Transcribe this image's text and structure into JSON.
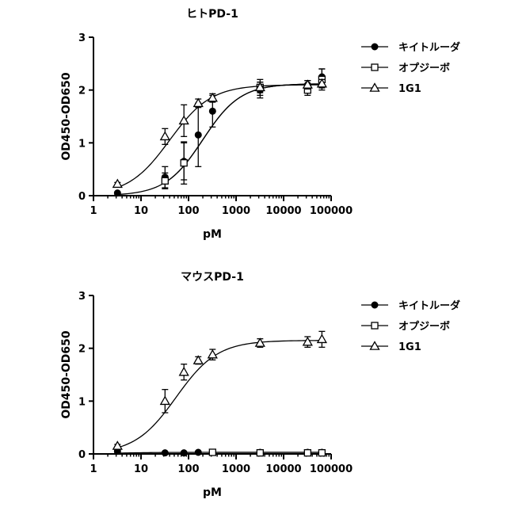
{
  "chart_data": [
    {
      "type": "scatter",
      "title": "ヒトPD-1",
      "xlabel": "pM",
      "ylabel": "OD450-OD650",
      "xscale": "log",
      "xlim": [
        1,
        100000
      ],
      "ylim": [
        0,
        3
      ],
      "xticks": [
        1,
        10,
        100,
        1000,
        10000,
        100000
      ],
      "xtick_labels": [
        "1",
        "10",
        "100",
        "1000",
        "10000",
        "100000"
      ],
      "yticks": [
        0,
        1,
        2,
        3
      ],
      "ytick_labels": [
        "0",
        "1",
        "2",
        "3"
      ],
      "legend_position": "right",
      "series": [
        {
          "name": "キイトルーダ",
          "marker": "filled-circle",
          "fit": "sigmoid",
          "fit_params": {
            "bottom": 0.0,
            "top": 2.12,
            "ec50": 200,
            "hill": 1.1
          },
          "points": [
            {
              "x": 3.2,
              "y": 0.05,
              "err": 0.02
            },
            {
              "x": 32,
              "y": 0.35,
              "err": 0.2
            },
            {
              "x": 80,
              "y": 0.65,
              "err": 0.35
            },
            {
              "x": 160,
              "y": 1.15,
              "err": 0.6
            },
            {
              "x": 320,
              "y": 1.6,
              "err": 0.3
            },
            {
              "x": 3200,
              "y": 2.0,
              "err": 0.15
            },
            {
              "x": 32000,
              "y": 2.1,
              "err": 0.08
            },
            {
              "x": 64000,
              "y": 2.25,
              "err": 0.15
            }
          ]
        },
        {
          "name": "オプジーボ",
          "marker": "open-square",
          "fit": "sigmoid",
          "fit_params": {
            "bottom": 0.0,
            "top": 2.12,
            "ec50": 200,
            "hill": 1.1
          },
          "points": [
            {
              "x": 32,
              "y": 0.28,
              "err": 0.15
            },
            {
              "x": 80,
              "y": 0.62,
              "err": 0.4
            },
            {
              "x": 3200,
              "y": 2.05,
              "err": 0.15
            },
            {
              "x": 32000,
              "y": 2.0,
              "err": 0.1
            },
            {
              "x": 64000,
              "y": 2.2,
              "err": 0.2
            }
          ]
        },
        {
          "name": "1G1",
          "marker": "open-triangle",
          "fit": "sigmoid",
          "fit_params": {
            "bottom": 0.0,
            "top": 2.1,
            "ec50": 40,
            "hill": 1.0
          },
          "points": [
            {
              "x": 3.2,
              "y": 0.22,
              "err": 0.03
            },
            {
              "x": 32,
              "y": 1.12,
              "err": 0.15
            },
            {
              "x": 80,
              "y": 1.42,
              "err": 0.3
            },
            {
              "x": 160,
              "y": 1.75,
              "err": 0.08
            },
            {
              "x": 320,
              "y": 1.85,
              "err": 0.08
            },
            {
              "x": 3200,
              "y": 2.05,
              "err": 0.1
            },
            {
              "x": 32000,
              "y": 2.1,
              "err": 0.08
            },
            {
              "x": 64000,
              "y": 2.12,
              "err": 0.08
            }
          ]
        }
      ]
    },
    {
      "type": "scatter",
      "title": "マウスPD-1",
      "xlabel": "pM",
      "ylabel": "OD450-OD650",
      "xscale": "log",
      "xlim": [
        1,
        100000
      ],
      "ylim": [
        0,
        3
      ],
      "xticks": [
        1,
        10,
        100,
        1000,
        10000,
        100000
      ],
      "xtick_labels": [
        "1",
        "10",
        "100",
        "1000",
        "10000",
        "100000"
      ],
      "yticks": [
        0,
        1,
        2,
        3
      ],
      "ytick_labels": [
        "0",
        "1",
        "2",
        "3"
      ],
      "legend_position": "right",
      "series": [
        {
          "name": "キイトルーダ",
          "marker": "filled-circle",
          "fit": "sigmoid",
          "fit_params": {
            "bottom": 0.0,
            "top": 0.03,
            "ec50": 3,
            "hill": 1.0
          },
          "points": [
            {
              "x": 3.2,
              "y": 0.05,
              "err": 0.02
            },
            {
              "x": 32,
              "y": 0.02,
              "err": 0.01
            },
            {
              "x": 80,
              "y": 0.02,
              "err": 0.01
            },
            {
              "x": 160,
              "y": 0.03,
              "err": 0.01
            },
            {
              "x": 320,
              "y": 0.03,
              "err": 0.01
            },
            {
              "x": 3200,
              "y": 0.03,
              "err": 0.01
            },
            {
              "x": 32000,
              "y": 0.03,
              "err": 0.01
            },
            {
              "x": 64000,
              "y": 0.03,
              "err": 0.01
            }
          ]
        },
        {
          "name": "オプジーボ",
          "marker": "open-square",
          "fit": "sigmoid",
          "fit_params": {
            "bottom": 0.0,
            "top": 0.03,
            "ec50": 3,
            "hill": 1.0
          },
          "points": [
            {
              "x": 320,
              "y": 0.03,
              "err": 0.01
            },
            {
              "x": 3200,
              "y": 0.02,
              "err": 0.01
            },
            {
              "x": 32000,
              "y": 0.02,
              "err": 0.01
            },
            {
              "x": 64000,
              "y": 0.02,
              "err": 0.01
            }
          ]
        },
        {
          "name": "1G1",
          "marker": "open-triangle",
          "fit": "sigmoid",
          "fit_params": {
            "bottom": 0.0,
            "top": 2.15,
            "ec50": 55,
            "hill": 1.0
          },
          "points": [
            {
              "x": 3.2,
              "y": 0.15,
              "err": 0.03
            },
            {
              "x": 32,
              "y": 1.0,
              "err": 0.22
            },
            {
              "x": 80,
              "y": 1.55,
              "err": 0.15
            },
            {
              "x": 160,
              "y": 1.77,
              "err": 0.07
            },
            {
              "x": 320,
              "y": 1.88,
              "err": 0.1
            },
            {
              "x": 3200,
              "y": 2.1,
              "err": 0.08
            },
            {
              "x": 32000,
              "y": 2.12,
              "err": 0.1
            },
            {
              "x": 64000,
              "y": 2.17,
              "err": 0.15
            }
          ]
        }
      ]
    }
  ]
}
